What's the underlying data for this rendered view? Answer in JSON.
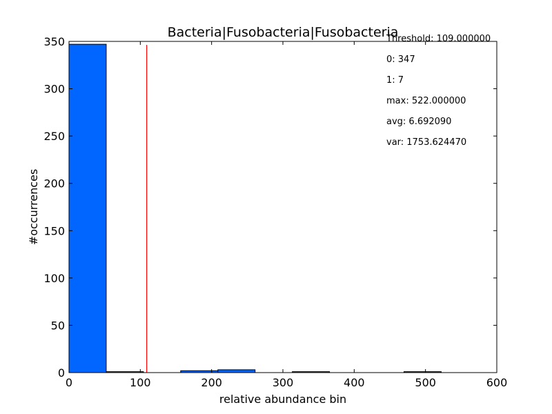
{
  "chart_data": {
    "type": "bar",
    "title": "Bacteria|Fusobacteria|Fusobacteria",
    "xlabel": "relative abundance bin",
    "ylabel": "#occurrences",
    "xlim": [
      0,
      600
    ],
    "ylim": [
      0,
      350
    ],
    "xticks": [
      0,
      100,
      200,
      300,
      400,
      500,
      600
    ],
    "yticks": [
      0,
      50,
      100,
      150,
      200,
      250,
      300,
      350
    ],
    "bar_color": "#0066ff",
    "threshold_color": "#ff0000",
    "threshold": 109.0,
    "bins": [
      {
        "x0": 0.0,
        "x1": 52.2,
        "count": 347
      },
      {
        "x0": 52.2,
        "x1": 104.4,
        "count": 1
      },
      {
        "x0": 104.4,
        "x1": 156.6,
        "count": 0
      },
      {
        "x0": 156.6,
        "x1": 208.8,
        "count": 2
      },
      {
        "x0": 208.8,
        "x1": 261.0,
        "count": 3
      },
      {
        "x0": 261.0,
        "x1": 313.2,
        "count": 0
      },
      {
        "x0": 313.2,
        "x1": 365.4,
        "count": 1
      },
      {
        "x0": 365.4,
        "x1": 417.6,
        "count": 0
      },
      {
        "x0": 417.6,
        "x1": 469.8,
        "count": 0
      },
      {
        "x0": 469.8,
        "x1": 522.0,
        "count": 1
      }
    ],
    "annotations": [
      "Threshold: 109.000000",
      "0: 347",
      "1: 7",
      "max: 522.000000",
      "avg: 6.692090",
      "var: 1753.624470"
    ]
  }
}
